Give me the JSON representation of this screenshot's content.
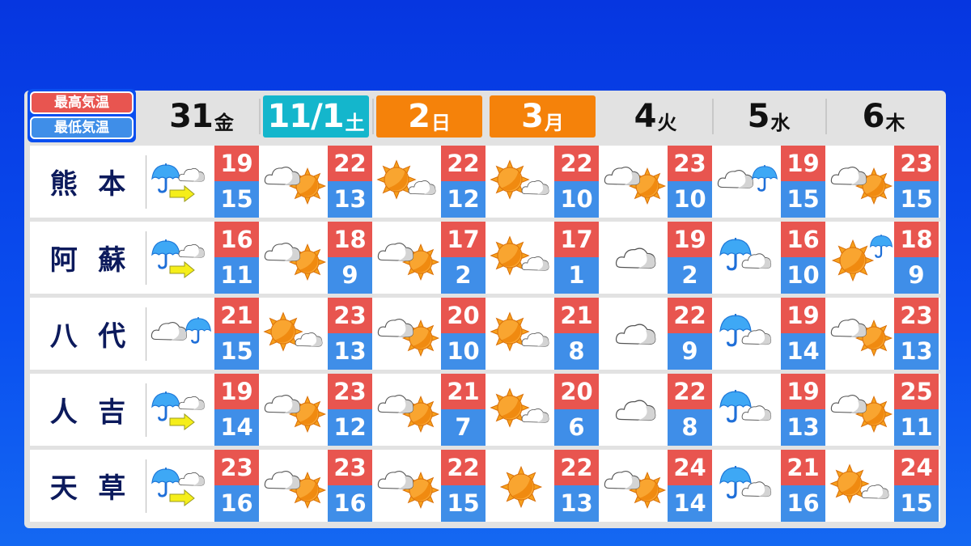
{
  "legend": {
    "high_label": "最高気温",
    "low_label": "最低気温",
    "high_color": "#e8554f",
    "low_color": "#3f8ee8"
  },
  "days": [
    {
      "date": "31",
      "weekday": "金",
      "style": "plain"
    },
    {
      "date": "11/1",
      "weekday": "土",
      "style": "cyan"
    },
    {
      "date": "2",
      "weekday": "日",
      "style": "orange"
    },
    {
      "date": "3",
      "weekday": "月",
      "style": "orange"
    },
    {
      "date": "4",
      "weekday": "火",
      "style": "plain"
    },
    {
      "date": "5",
      "weekday": "水",
      "style": "plain"
    },
    {
      "date": "6",
      "weekday": "木",
      "style": "plain"
    }
  ],
  "locations": [
    {
      "name": [
        "熊",
        "本"
      ],
      "forecast": [
        {
          "icon": "rain-then-cloudy",
          "high": "19",
          "low": "15"
        },
        {
          "icon": "cloudy-sometimes-sunny",
          "high": "22",
          "low": "13"
        },
        {
          "icon": "sunny-sometimes-cloudy",
          "high": "22",
          "low": "12"
        },
        {
          "icon": "sunny-sometimes-cloudy",
          "high": "22",
          "low": "10"
        },
        {
          "icon": "cloudy-sometimes-sunny",
          "high": "23",
          "low": "10"
        },
        {
          "icon": "cloudy-sometimes-rain",
          "high": "19",
          "low": "15"
        },
        {
          "icon": "cloudy-sometimes-sunny",
          "high": "23",
          "low": "15"
        }
      ]
    },
    {
      "name": [
        "阿",
        "蘇"
      ],
      "forecast": [
        {
          "icon": "rain-then-cloudy",
          "high": "16",
          "low": "11"
        },
        {
          "icon": "cloudy-sometimes-sunny",
          "high": "18",
          "low": "9"
        },
        {
          "icon": "cloudy-sometimes-sunny",
          "high": "17",
          "low": "2"
        },
        {
          "icon": "sunny-sometimes-cloudy",
          "high": "17",
          "low": "1"
        },
        {
          "icon": "cloudy",
          "high": "19",
          "low": "2"
        },
        {
          "icon": "rain-sometimes-cloudy",
          "high": "16",
          "low": "10"
        },
        {
          "icon": "sunny-sometimes-rain",
          "high": "18",
          "low": "9"
        }
      ]
    },
    {
      "name": [
        "八",
        "代"
      ],
      "forecast": [
        {
          "icon": "cloudy-sometimes-rain",
          "high": "21",
          "low": "15"
        },
        {
          "icon": "sunny-sometimes-cloudy",
          "high": "23",
          "low": "13"
        },
        {
          "icon": "cloudy-sometimes-sunny",
          "high": "20",
          "low": "10"
        },
        {
          "icon": "sunny-sometimes-cloudy",
          "high": "21",
          "low": "8"
        },
        {
          "icon": "cloudy",
          "high": "22",
          "low": "9"
        },
        {
          "icon": "rain-sometimes-cloudy",
          "high": "19",
          "low": "14"
        },
        {
          "icon": "cloudy-sometimes-sunny",
          "high": "23",
          "low": "13"
        }
      ]
    },
    {
      "name": [
        "人",
        "吉"
      ],
      "forecast": [
        {
          "icon": "rain-then-cloudy",
          "high": "19",
          "low": "14"
        },
        {
          "icon": "cloudy-sometimes-sunny",
          "high": "23",
          "low": "12"
        },
        {
          "icon": "cloudy-sometimes-sunny",
          "high": "21",
          "low": "7"
        },
        {
          "icon": "sunny-sometimes-cloudy",
          "high": "20",
          "low": "6"
        },
        {
          "icon": "cloudy",
          "high": "22",
          "low": "8"
        },
        {
          "icon": "rain-sometimes-cloudy",
          "high": "19",
          "low": "13"
        },
        {
          "icon": "cloudy-sometimes-sunny",
          "high": "25",
          "low": "11"
        }
      ]
    },
    {
      "name": [
        "天",
        "草"
      ],
      "forecast": [
        {
          "icon": "rain-then-cloudy",
          "high": "23",
          "low": "16"
        },
        {
          "icon": "cloudy-sometimes-sunny",
          "high": "23",
          "low": "16"
        },
        {
          "icon": "cloudy-sometimes-sunny",
          "high": "22",
          "low": "15"
        },
        {
          "icon": "sunny",
          "high": "22",
          "low": "13"
        },
        {
          "icon": "cloudy-sometimes-sunny",
          "high": "24",
          "low": "14"
        },
        {
          "icon": "rain-sometimes-cloudy",
          "high": "21",
          "low": "16"
        },
        {
          "icon": "sunny-sometimes-cloudy",
          "high": "24",
          "low": "15"
        }
      ]
    }
  ]
}
